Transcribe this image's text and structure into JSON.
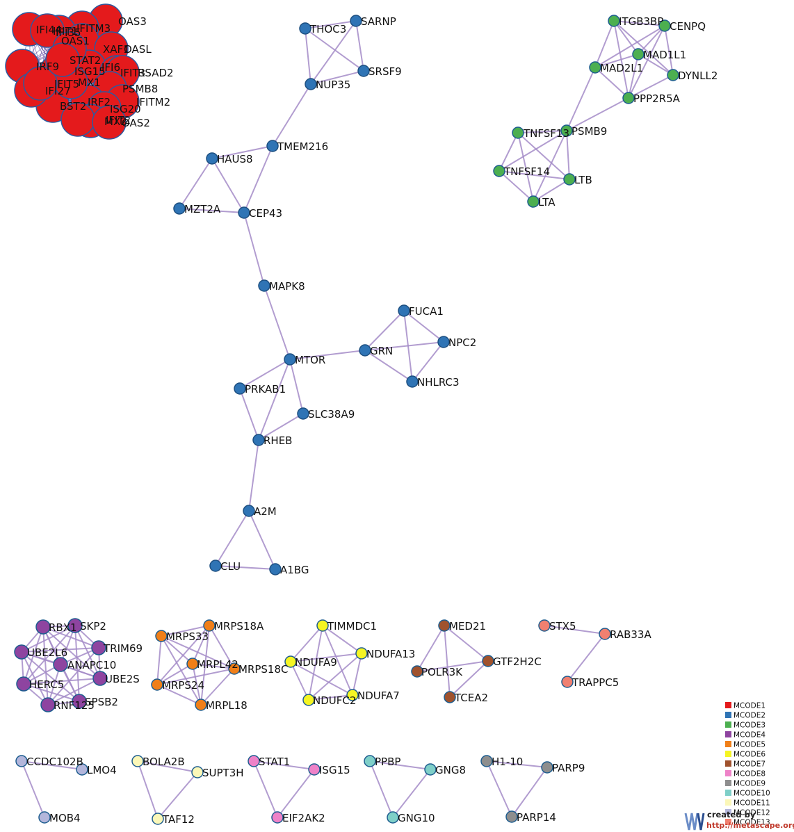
{
  "clusters": {
    "MCODE1": {
      "color": "#e41a1c",
      "stroke": "#2c5aa0"
    },
    "MCODE2": {
      "color": "#2f74b5",
      "stroke": "#1d4f80"
    },
    "MCODE3": {
      "color": "#4caf50",
      "stroke": "#1d5d8f"
    },
    "MCODE4": {
      "color": "#8e44a0",
      "stroke": "#1d5d8f"
    },
    "MCODE5": {
      "color": "#f07f18",
      "stroke": "#1d5d8f"
    },
    "MCODE6": {
      "color": "#f5f523",
      "stroke": "#1d5d8f"
    },
    "MCODE7": {
      "color": "#a0522d",
      "stroke": "#1d5d8f"
    },
    "MCODE8": {
      "color": "#ee82c8",
      "stroke": "#1d5d8f"
    },
    "MCODE9": {
      "color": "#8e8e8e",
      "stroke": "#1d5d8f"
    },
    "MCODE10": {
      "color": "#7fcfc8",
      "stroke": "#1d5d8f"
    },
    "MCODE11": {
      "color": "#fbf7b8",
      "stroke": "#1d5d8f"
    },
    "MCODE12": {
      "color": "#b3b6db",
      "stroke": "#1d5d8f"
    },
    "MCODE13": {
      "color": "#f08070",
      "stroke": "#1d5d8f"
    }
  },
  "legend": [
    "MCODE1",
    "MCODE2",
    "MCODE3",
    "MCODE4",
    "MCODE5",
    "MCODE6",
    "MCODE7",
    "MCODE8",
    "MCODE9",
    "MCODE10",
    "MCODE11",
    "MCODE12",
    "MCODE13"
  ],
  "nodes": [
    {
      "id": "OAS3",
      "c": "MCODE1"
    },
    {
      "id": "IFITM3",
      "c": "MCODE1"
    },
    {
      "id": "IFI35",
      "c": "MCODE1"
    },
    {
      "id": "IFI44",
      "c": "MCODE1"
    },
    {
      "id": "OAS1",
      "c": "MCODE1"
    },
    {
      "id": "OASL",
      "c": "MCODE1"
    },
    {
      "id": "IFI6",
      "c": "MCODE1"
    },
    {
      "id": "IFIT3",
      "c": "MCODE1"
    },
    {
      "id": "RSAD2",
      "c": "MCODE1"
    },
    {
      "id": "PSMB8",
      "c": "MCODE1"
    },
    {
      "id": "IFITM2",
      "c": "MCODE1"
    },
    {
      "id": "IRF2",
      "c": "MCODE1"
    },
    {
      "id": "BST2",
      "c": "MCODE1"
    },
    {
      "id": "ISG20",
      "c": "MCODE1"
    },
    {
      "id": "MX2",
      "c": "MCODE1"
    },
    {
      "id": "IFIT2",
      "c": "MCODE1"
    },
    {
      "id": "OAS2",
      "c": "MCODE1"
    },
    {
      "id": "IFIT1",
      "c": "MCODE1"
    },
    {
      "id": "IRF9",
      "c": "MCODE1"
    },
    {
      "id": "ISG15_A",
      "c": "MCODE1"
    },
    {
      "id": "XAF1",
      "c": "MCODE1"
    },
    {
      "id": "IFI27",
      "c": "MCODE1"
    },
    {
      "id": "MX1",
      "c": "MCODE1"
    },
    {
      "id": "IFIT5",
      "c": "MCODE1"
    },
    {
      "id": "STAT2",
      "c": "MCODE1"
    },
    {
      "id": "THOC3",
      "c": "MCODE2"
    },
    {
      "id": "SARNP",
      "c": "MCODE2"
    },
    {
      "id": "SRSF9",
      "c": "MCODE2"
    },
    {
      "id": "NUP35",
      "c": "MCODE2"
    },
    {
      "id": "TMEM216",
      "c": "MCODE2"
    },
    {
      "id": "HAUS8",
      "c": "MCODE2"
    },
    {
      "id": "MZT2A",
      "c": "MCODE2"
    },
    {
      "id": "CEP43",
      "c": "MCODE2"
    },
    {
      "id": "MAPK8",
      "c": "MCODE2"
    },
    {
      "id": "FUCA1",
      "c": "MCODE2"
    },
    {
      "id": "GRN",
      "c": "MCODE2"
    },
    {
      "id": "NPC2",
      "c": "MCODE2"
    },
    {
      "id": "NHLRC3",
      "c": "MCODE2"
    },
    {
      "id": "MTOR",
      "c": "MCODE2"
    },
    {
      "id": "PRKAB1",
      "c": "MCODE2"
    },
    {
      "id": "SLC38A9",
      "c": "MCODE2"
    },
    {
      "id": "RHEB",
      "c": "MCODE2"
    },
    {
      "id": "A2M",
      "c": "MCODE2"
    },
    {
      "id": "CLU",
      "c": "MCODE2"
    },
    {
      "id": "A1BG",
      "c": "MCODE2"
    },
    {
      "id": "ITGB3BP",
      "c": "MCODE3"
    },
    {
      "id": "CENPQ",
      "c": "MCODE3"
    },
    {
      "id": "MAD1L1",
      "c": "MCODE3"
    },
    {
      "id": "MAD2L1",
      "c": "MCODE3"
    },
    {
      "id": "DYNLL2",
      "c": "MCODE3"
    },
    {
      "id": "PPP2R5A",
      "c": "MCODE3"
    },
    {
      "id": "PSMB9",
      "c": "MCODE3"
    },
    {
      "id": "TNFSF13",
      "c": "MCODE3"
    },
    {
      "id": "TNFSF14",
      "c": "MCODE3"
    },
    {
      "id": "LTB",
      "c": "MCODE3"
    },
    {
      "id": "LTA",
      "c": "MCODE3"
    },
    {
      "id": "RBX1",
      "c": "MCODE4"
    },
    {
      "id": "SKP2",
      "c": "MCODE4"
    },
    {
      "id": "TRIM69",
      "c": "MCODE4"
    },
    {
      "id": "UBE2L6",
      "c": "MCODE4"
    },
    {
      "id": "ANAPC10",
      "c": "MCODE4"
    },
    {
      "id": "UBE2S",
      "c": "MCODE4"
    },
    {
      "id": "HERC5",
      "c": "MCODE4"
    },
    {
      "id": "SPSB2",
      "c": "MCODE4"
    },
    {
      "id": "RNF125",
      "c": "MCODE4"
    },
    {
      "id": "MRPS18A",
      "c": "MCODE5"
    },
    {
      "id": "MRPS33",
      "c": "MCODE5"
    },
    {
      "id": "MRPL42",
      "c": "MCODE5"
    },
    {
      "id": "MRPS18C",
      "c": "MCODE5"
    },
    {
      "id": "MRPS24",
      "c": "MCODE5"
    },
    {
      "id": "MRPL18",
      "c": "MCODE5"
    },
    {
      "id": "TIMMDC1",
      "c": "MCODE6"
    },
    {
      "id": "NDUFA9",
      "c": "MCODE6"
    },
    {
      "id": "NDUFA13",
      "c": "MCODE6"
    },
    {
      "id": "NDUFC2",
      "c": "MCODE6"
    },
    {
      "id": "NDUFA7",
      "c": "MCODE6"
    },
    {
      "id": "MED21",
      "c": "MCODE7"
    },
    {
      "id": "GTF2H2C",
      "c": "MCODE7"
    },
    {
      "id": "POLR3K",
      "c": "MCODE7"
    },
    {
      "id": "TCEA2",
      "c": "MCODE7"
    },
    {
      "id": "STX5",
      "c": "MCODE13"
    },
    {
      "id": "RAB33A",
      "c": "MCODE13"
    },
    {
      "id": "TRAPPC5",
      "c": "MCODE13"
    },
    {
      "id": "CCDC102B",
      "c": "MCODE12"
    },
    {
      "id": "LMO4",
      "c": "MCODE12"
    },
    {
      "id": "MOB4",
      "c": "MCODE12"
    },
    {
      "id": "BOLA2B",
      "c": "MCODE11"
    },
    {
      "id": "SUPT3H",
      "c": "MCODE11"
    },
    {
      "id": "TAF12",
      "c": "MCODE11"
    },
    {
      "id": "STAT1",
      "c": "MCODE8"
    },
    {
      "id": "ISG15",
      "c": "MCODE8"
    },
    {
      "id": "EIF2AK2",
      "c": "MCODE8"
    },
    {
      "id": "PPBP",
      "c": "MCODE10"
    },
    {
      "id": "GNG8",
      "c": "MCODE10"
    },
    {
      "id": "GNG10",
      "c": "MCODE10"
    },
    {
      "id": "H1-10",
      "c": "MCODE9"
    },
    {
      "id": "PARP9",
      "c": "MCODE9"
    },
    {
      "id": "PARP14",
      "c": "MCODE9"
    }
  ],
  "labels": {
    "OAS3": "OAS3",
    "IFITM3": "IFITM3",
    "IFI35": "IFI35",
    "IFI44": "IFI44",
    "OAS1": "OAS1",
    "OASL": "OASL",
    "IFI6": "IFI6",
    "IFIT3": "IFIT3",
    "RSAD2": "RSAD2",
    "PSMB8": "PSMB8",
    "IFITM2": "IFITM2",
    "IRF2": "IRF2",
    "BST2": "BST2",
    "ISG20": "ISG20",
    "MX2": "MX2",
    "IFIT2": "IFIT2",
    "OAS2": "OAS2",
    "IFIT1": "IFIT1",
    "IRF9": "IRF9",
    "ISG15_A": "ISG15",
    "XAF1": "XAF1",
    "IFI27": "IFI27",
    "MX1": "MX1",
    "IFIT5": "IFIT5",
    "STAT2": "STAT2",
    "THOC3": "THOC3",
    "SARNP": "SARNP",
    "SRSF9": "SRSF9",
    "NUP35": "NUP35",
    "TMEM216": "TMEM216",
    "HAUS8": "HAUS8",
    "MZT2A": "MZT2A",
    "CEP43": "CEP43",
    "MAPK8": "MAPK8",
    "FUCA1": "FUCA1",
    "GRN": "GRN",
    "NPC2": "NPC2",
    "NHLRC3": "NHLRC3",
    "MTOR": "MTOR",
    "PRKAB1": "PRKAB1",
    "SLC38A9": "SLC38A9",
    "RHEB": "RHEB",
    "A2M": "A2M",
    "CLU": "CLU",
    "A1BG": "A1BG",
    "ITGB3BP": "ITGB3BP",
    "CENPQ": "CENPQ",
    "MAD1L1": "MAD1L1",
    "MAD2L1": "MAD2L1",
    "DYNLL2": "DYNLL2",
    "PPP2R5A": "PPP2R5A",
    "PSMB9": "PSMB9",
    "TNFSF13": "TNFSF13",
    "TNFSF14": "TNFSF14",
    "LTB": "LTB",
    "LTA": "LTA",
    "RBX1": "RBX1",
    "SKP2": "SKP2",
    "TRIM69": "TRIM69",
    "UBE2L6": "UBE2L6",
    "ANAPC10": "ANAPC10",
    "UBE2S": "UBE2S",
    "HERC5": "HERC5",
    "SPSB2": "SPSB2",
    "RNF125": "RNF125",
    "MRPS18A": "MRPS18A",
    "MRPS33": "MRPS33",
    "MRPL42": "MRPL42",
    "MRPS18C": "MRPS18C",
    "MRPS24": "MRPS24",
    "MRPL18": "MRPL18",
    "TIMMDC1": "TIMMDC1",
    "NDUFA9": "NDUFA9",
    "NDUFA13": "NDUFA13",
    "NDUFC2": "NDUFC2",
    "NDUFA7": "NDUFA7",
    "MED21": "MED21",
    "GTF2H2C": "GTF2H2C",
    "POLR3K": "POLR3K",
    "TCEA2": "TCEA2",
    "STX5": "STX5",
    "RAB33A": "RAB33A",
    "TRAPPC5": "TRAPPC5",
    "CCDC102B": "CCDC102B",
    "LMO4": "LMO4",
    "MOB4": "MOB4",
    "BOLA2B": "BOLA2B",
    "SUPT3H": "SUPT3H",
    "TAF12": "TAF12",
    "STAT1": "STAT1",
    "ISG15": "ISG15",
    "EIF2AK2": "EIF2AK2",
    "PPBP": "PPBP",
    "GNG8": "GNG8",
    "GNG10": "GNG10",
    "H1-10": "H1-10",
    "PARP9": "PARP9",
    "PARP14": "PARP14"
  },
  "edges": [
    [
      "THOC3",
      "SARNP"
    ],
    [
      "THOC3",
      "SRSF9"
    ],
    [
      "THOC3",
      "NUP35"
    ],
    [
      "SARNP",
      "SRSF9"
    ],
    [
      "SARNP",
      "NUP35"
    ],
    [
      "SRSF9",
      "NUP35"
    ],
    [
      "NUP35",
      "TMEM216"
    ],
    [
      "TMEM216",
      "CEP43"
    ],
    [
      "HAUS8",
      "TMEM216"
    ],
    [
      "HAUS8",
      "CEP43"
    ],
    [
      "HAUS8",
      "MZT2A"
    ],
    [
      "MZT2A",
      "CEP43"
    ],
    [
      "CEP43",
      "MAPK8"
    ],
    [
      "MAPK8",
      "MTOR"
    ],
    [
      "MTOR",
      "GRN"
    ],
    [
      "GRN",
      "FUCA1"
    ],
    [
      "GRN",
      "NPC2"
    ],
    [
      "GRN",
      "NHLRC3"
    ],
    [
      "FUCA1",
      "NPC2"
    ],
    [
      "FUCA1",
      "NHLRC3"
    ],
    [
      "NPC2",
      "NHLRC3"
    ],
    [
      "MTOR",
      "PRKAB1"
    ],
    [
      "MTOR",
      "SLC38A9"
    ],
    [
      "MTOR",
      "RHEB"
    ],
    [
      "PRKAB1",
      "RHEB"
    ],
    [
      "SLC38A9",
      "RHEB"
    ],
    [
      "RHEB",
      "A2M"
    ],
    [
      "A2M",
      "CLU"
    ],
    [
      "A2M",
      "A1BG"
    ],
    [
      "CLU",
      "A1BG"
    ],
    [
      "ITGB3BP",
      "CENPQ"
    ],
    [
      "ITGB3BP",
      "MAD1L1"
    ],
    [
      "ITGB3BP",
      "MAD2L1"
    ],
    [
      "ITGB3BP",
      "DYNLL2"
    ],
    [
      "ITGB3BP",
      "PPP2R5A"
    ],
    [
      "CENPQ",
      "MAD1L1"
    ],
    [
      "CENPQ",
      "MAD2L1"
    ],
    [
      "CENPQ",
      "DYNLL2"
    ],
    [
      "CENPQ",
      "PPP2R5A"
    ],
    [
      "MAD1L1",
      "MAD2L1"
    ],
    [
      "MAD1L1",
      "DYNLL2"
    ],
    [
      "MAD1L1",
      "PPP2R5A"
    ],
    [
      "MAD2L1",
      "PPP2R5A"
    ],
    [
      "DYNLL2",
      "PPP2R5A"
    ],
    [
      "MAD2L1",
      "PSMB9"
    ],
    [
      "PPP2R5A",
      "PSMB9"
    ],
    [
      "PSMB9",
      "TNFSF13"
    ],
    [
      "PSMB9",
      "TNFSF14"
    ],
    [
      "PSMB9",
      "LTB"
    ],
    [
      "PSMB9",
      "LTA"
    ],
    [
      "TNFSF13",
      "TNFSF14"
    ],
    [
      "TNFSF13",
      "LTB"
    ],
    [
      "TNFSF13",
      "LTA"
    ],
    [
      "TNFSF14",
      "LTB"
    ],
    [
      "TNFSF14",
      "LTA"
    ],
    [
      "LTB",
      "LTA"
    ],
    [
      "RBX1",
      "SKP2"
    ],
    [
      "RBX1",
      "TRIM69"
    ],
    [
      "RBX1",
      "UBE2L6"
    ],
    [
      "RBX1",
      "ANAPC10"
    ],
    [
      "RBX1",
      "UBE2S"
    ],
    [
      "RBX1",
      "HERC5"
    ],
    [
      "RBX1",
      "SPSB2"
    ],
    [
      "RBX1",
      "RNF125"
    ],
    [
      "SKP2",
      "TRIM69"
    ],
    [
      "SKP2",
      "UBE2L6"
    ],
    [
      "SKP2",
      "ANAPC10"
    ],
    [
      "SKP2",
      "UBE2S"
    ],
    [
      "SKP2",
      "HERC5"
    ],
    [
      "SKP2",
      "SPSB2"
    ],
    [
      "TRIM69",
      "UBE2L6"
    ],
    [
      "TRIM69",
      "ANAPC10"
    ],
    [
      "TRIM69",
      "UBE2S"
    ],
    [
      "TRIM69",
      "RNF125"
    ],
    [
      "UBE2L6",
      "ANAPC10"
    ],
    [
      "UBE2L6",
      "UBE2S"
    ],
    [
      "UBE2L6",
      "HERC5"
    ],
    [
      "UBE2L6",
      "RNF125"
    ],
    [
      "UBE2L6",
      "SPSB2"
    ],
    [
      "ANAPC10",
      "UBE2S"
    ],
    [
      "ANAPC10",
      "HERC5"
    ],
    [
      "ANAPC10",
      "SPSB2"
    ],
    [
      "ANAPC10",
      "RNF125"
    ],
    [
      "UBE2S",
      "HERC5"
    ],
    [
      "UBE2S",
      "RNF125"
    ],
    [
      "HERC5",
      "SPSB2"
    ],
    [
      "HERC5",
      "RNF125"
    ],
    [
      "SPSB2",
      "RNF125"
    ],
    [
      "MRPS18A",
      "MRPS33"
    ],
    [
      "MRPS18A",
      "MRPL42"
    ],
    [
      "MRPS18A",
      "MRPS18C"
    ],
    [
      "MRPS18A",
      "MRPS24"
    ],
    [
      "MRPS18A",
      "MRPL18"
    ],
    [
      "MRPS33",
      "MRPL42"
    ],
    [
      "MRPS33",
      "MRPS18C"
    ],
    [
      "MRPS33",
      "MRPS24"
    ],
    [
      "MRPS33",
      "MRPL18"
    ],
    [
      "MRPL42",
      "MRPS18C"
    ],
    [
      "MRPL42",
      "MRPS24"
    ],
    [
      "MRPL42",
      "MRPL18"
    ],
    [
      "MRPS18C",
      "MRPS24"
    ],
    [
      "MRPS18C",
      "MRPL18"
    ],
    [
      "MRPS24",
      "MRPL18"
    ],
    [
      "TIMMDC1",
      "NDUFA9"
    ],
    [
      "TIMMDC1",
      "NDUFA13"
    ],
    [
      "TIMMDC1",
      "NDUFC2"
    ],
    [
      "TIMMDC1",
      "NDUFA7"
    ],
    [
      "NDUFA9",
      "NDUFA13"
    ],
    [
      "NDUFA9",
      "NDUFC2"
    ],
    [
      "NDUFA9",
      "NDUFA7"
    ],
    [
      "NDUFA13",
      "NDUFC2"
    ],
    [
      "NDUFA13",
      "NDUFA7"
    ],
    [
      "NDUFC2",
      "NDUFA7"
    ],
    [
      "MED21",
      "GTF2H2C"
    ],
    [
      "MED21",
      "POLR3K"
    ],
    [
      "MED21",
      "TCEA2"
    ],
    [
      "GTF2H2C",
      "POLR3K"
    ],
    [
      "GTF2H2C",
      "TCEA2"
    ],
    [
      "STX5",
      "RAB33A"
    ],
    [
      "RAB33A",
      "TRAPPC5"
    ],
    [
      "CCDC102B",
      "LMO4"
    ],
    [
      "CCDC102B",
      "MOB4"
    ],
    [
      "BOLA2B",
      "SUPT3H"
    ],
    [
      "BOLA2B",
      "TAF12"
    ],
    [
      "SUPT3H",
      "TAF12"
    ],
    [
      "STAT1",
      "ISG15"
    ],
    [
      "STAT1",
      "EIF2AK2"
    ],
    [
      "ISG15",
      "EIF2AK2"
    ],
    [
      "PPBP",
      "GNG8"
    ],
    [
      "PPBP",
      "GNG10"
    ],
    [
      "GNG8",
      "GNG10"
    ],
    [
      "H1-10",
      "PARP9"
    ],
    [
      "H1-10",
      "PARP14"
    ],
    [
      "PARP9",
      "PARP14"
    ]
  ],
  "credit": {
    "line1": "created by",
    "line2": "http://metascape.org"
  }
}
